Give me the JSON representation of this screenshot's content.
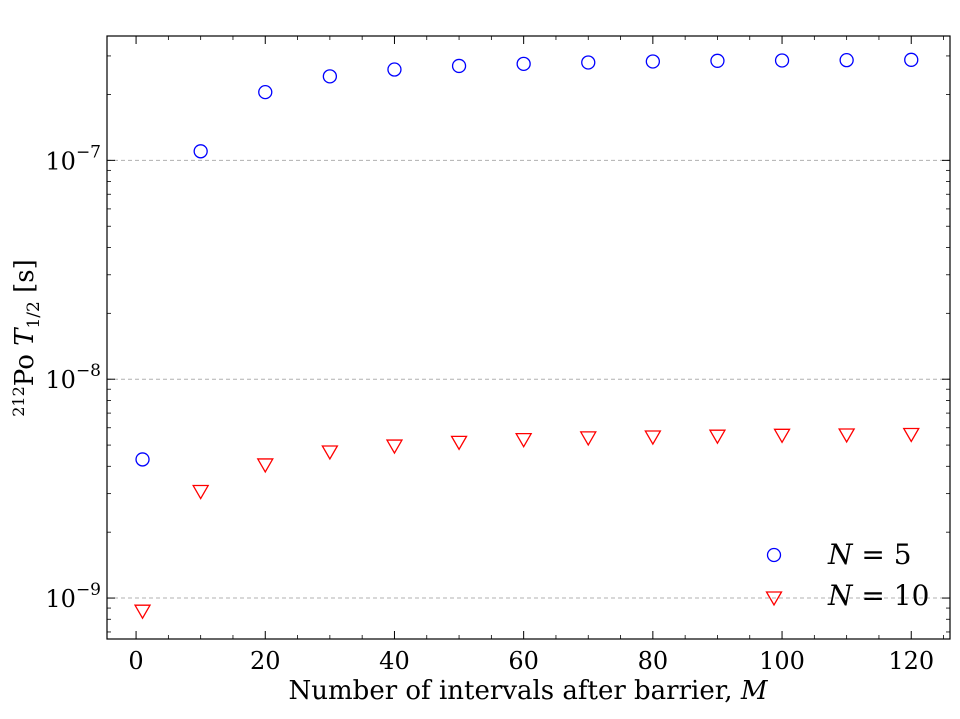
{
  "chart_data": {
    "type": "scatter",
    "title": "",
    "xlabel": "Number of intervals after barrier, ",
    "xlabel_var": "M",
    "ylabel_iso": "212",
    "ylabel_elem": "Po",
    "ylabel_sym": "T",
    "ylabel_sub": "1/2",
    "ylabel_unit": "[s]",
    "yscale": "log",
    "xlim": [
      -4.5,
      126
    ],
    "ylim": [
      6.5e-10,
      3.7e-07
    ],
    "xticks": [
      0,
      20,
      40,
      60,
      80,
      100,
      120
    ],
    "xtick_labels": [
      "0",
      "20",
      "40",
      "60",
      "80",
      "100",
      "120"
    ],
    "yticks": [
      1e-09,
      1e-08,
      1e-07
    ],
    "ytick_labels": [
      {
        "base": "10",
        "exp": "−9"
      },
      {
        "base": "10",
        "exp": "−8"
      },
      {
        "base": "10",
        "exp": "−7"
      }
    ],
    "grid": "y-major dashed",
    "legend_position": "lower-right",
    "series": [
      {
        "name_var": "N",
        "name_rest": " = 5",
        "marker": "circle",
        "color": "#0000ff",
        "x": [
          1,
          10,
          20,
          30,
          40,
          50,
          60,
          70,
          80,
          90,
          100,
          110,
          120
        ],
        "y": [
          4.3e-09,
          1.1e-07,
          2.05e-07,
          2.42e-07,
          2.6e-07,
          2.7e-07,
          2.76e-07,
          2.8e-07,
          2.83e-07,
          2.85e-07,
          2.86e-07,
          2.87e-07,
          2.88e-07
        ]
      },
      {
        "name_var": "N",
        "name_rest": " = 10",
        "marker": "triangle-down",
        "color": "#ff0000",
        "x": [
          1,
          10,
          20,
          30,
          40,
          50,
          60,
          70,
          80,
          90,
          100,
          110,
          120
        ],
        "y": [
          8.8e-10,
          3.1e-09,
          4.1e-09,
          4.7e-09,
          5e-09,
          5.2e-09,
          5.35e-09,
          5.45e-09,
          5.5e-09,
          5.55e-09,
          5.6e-09,
          5.62e-09,
          5.65e-09
        ]
      }
    ]
  }
}
